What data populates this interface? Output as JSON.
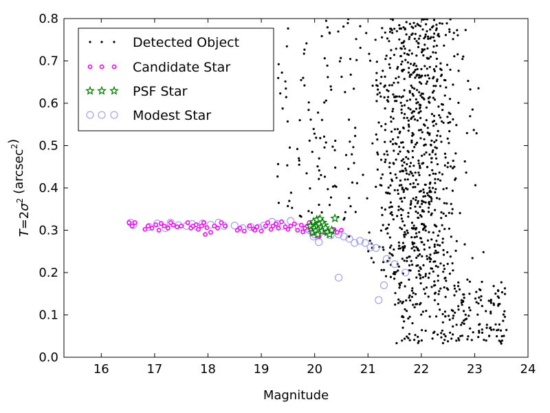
{
  "chart_data": {
    "type": "scatter",
    "xlabel": "Magnitude",
    "ylabel": "T = 2σ² (arcsec²)",
    "ylabel_parts": {
      "var": "T",
      "eq": "=2",
      "sigma": "σ",
      "sq": "2",
      "unit": " (arcsec",
      "unit_sq": "2",
      "close": ")"
    },
    "xlim": [
      15.3,
      24
    ],
    "ylim": [
      0.0,
      0.8
    ],
    "x_ticks": [
      "16",
      "17",
      "18",
      "19",
      "20",
      "21",
      "22",
      "23",
      "24"
    ],
    "y_ticks": [
      "0.0",
      "0.1",
      "0.2",
      "0.3",
      "0.4",
      "0.5",
      "0.6",
      "0.7",
      "0.8"
    ],
    "grid": false,
    "legend_position": "top-left",
    "legend": [
      {
        "label": "Detected Object",
        "marker": "dot",
        "color": "#000000"
      },
      {
        "label": "Candidate Star",
        "marker": "magenta-dot",
        "color": "#ff00ff"
      },
      {
        "label": "PSF Star",
        "marker": "star",
        "color": "#008000"
      },
      {
        "label": "Modest Star",
        "marker": "circle",
        "color": "#9999ee"
      }
    ],
    "series": [
      {
        "name": "Modest Star",
        "x": [
          16.55,
          16.6,
          16.9,
          17.05,
          17.2,
          17.3,
          17.45,
          17.6,
          17.7,
          17.8,
          17.9,
          18.05,
          18.2,
          18.3,
          18.5,
          18.65,
          18.8,
          18.95,
          19.05,
          19.2,
          19.3,
          19.4,
          19.55,
          19.7,
          19.85,
          19.9,
          19.95,
          20.0,
          20.05,
          20.1,
          20.2,
          20.3,
          20.45,
          20.55,
          20.65,
          20.75,
          20.85,
          20.95,
          21.05,
          21.15,
          21.35,
          21.5,
          21.7,
          20.45,
          21.3,
          21.2,
          19.95,
          19.98,
          20.08
        ],
        "y": [
          0.318,
          0.312,
          0.308,
          0.316,
          0.305,
          0.318,
          0.312,
          0.31,
          0.315,
          0.308,
          0.316,
          0.313,
          0.318,
          0.31,
          0.311,
          0.305,
          0.308,
          0.306,
          0.311,
          0.32,
          0.315,
          0.31,
          0.322,
          0.307,
          0.304,
          0.3,
          0.31,
          0.29,
          0.305,
          0.295,
          0.3,
          0.288,
          0.29,
          0.285,
          0.28,
          0.27,
          0.275,
          0.27,
          0.26,
          0.258,
          0.232,
          0.22,
          0.2,
          0.188,
          0.17,
          0.135,
          0.298,
          0.285,
          0.272
        ]
      },
      {
        "name": "Candidate Star",
        "x": [
          16.52,
          16.58,
          16.63,
          16.82,
          16.88,
          16.95,
          17.02,
          17.08,
          17.12,
          17.18,
          17.25,
          17.3,
          17.35,
          17.42,
          17.5,
          17.62,
          17.68,
          17.72,
          17.78,
          17.82,
          17.88,
          17.92,
          17.98,
          18.05,
          18.12,
          18.18,
          18.25,
          18.32,
          18.55,
          18.6,
          18.68,
          18.78,
          18.85,
          18.92,
          19.0,
          19.08,
          19.12,
          19.18,
          19.22,
          19.28,
          19.32,
          19.38,
          19.45,
          19.5,
          19.55,
          19.62,
          19.68,
          19.75,
          19.78,
          19.82,
          19.86,
          19.9,
          19.94,
          19.97,
          20.0,
          20.02,
          20.06,
          20.12,
          20.18,
          20.24,
          20.3,
          20.36,
          20.42,
          17.95,
          18.88,
          19.95,
          20.08,
          20.5
        ],
        "y": [
          0.318,
          0.31,
          0.318,
          0.302,
          0.31,
          0.305,
          0.313,
          0.3,
          0.316,
          0.31,
          0.305,
          0.318,
          0.312,
          0.308,
          0.31,
          0.318,
          0.305,
          0.31,
          0.313,
          0.302,
          0.31,
          0.318,
          0.306,
          0.295,
          0.31,
          0.305,
          0.318,
          0.31,
          0.3,
          0.305,
          0.298,
          0.31,
          0.303,
          0.308,
          0.298,
          0.31,
          0.318,
          0.302,
          0.31,
          0.315,
          0.305,
          0.32,
          0.308,
          0.302,
          0.31,
          0.315,
          0.3,
          0.312,
          0.296,
          0.305,
          0.31,
          0.318,
          0.302,
          0.31,
          0.315,
          0.3,
          0.308,
          0.305,
          0.295,
          0.3,
          0.298,
          0.302,
          0.295,
          0.29,
          0.3,
          0.292,
          0.285,
          0.3
        ]
      },
      {
        "name": "PSF Star",
        "x": [
          19.92,
          19.96,
          19.98,
          20.0,
          20.02,
          20.04,
          20.05,
          20.06,
          20.08,
          20.09,
          20.1,
          20.12,
          20.14,
          20.15,
          20.18,
          20.2,
          20.24,
          20.28,
          20.32,
          20.38
        ],
        "y": [
          0.31,
          0.295,
          0.32,
          0.305,
          0.3,
          0.325,
          0.31,
          0.29,
          0.302,
          0.315,
          0.327,
          0.308,
          0.298,
          0.318,
          0.312,
          0.305,
          0.295,
          0.29,
          0.3,
          0.328
        ]
      }
    ],
    "detected_object": {
      "name": "Detected Object",
      "generator": "dense cloud of faint objects, magnitude ~19.3-23.6, size T ~0.03-0.80, densest near magnitude 21-22.8"
    }
  }
}
